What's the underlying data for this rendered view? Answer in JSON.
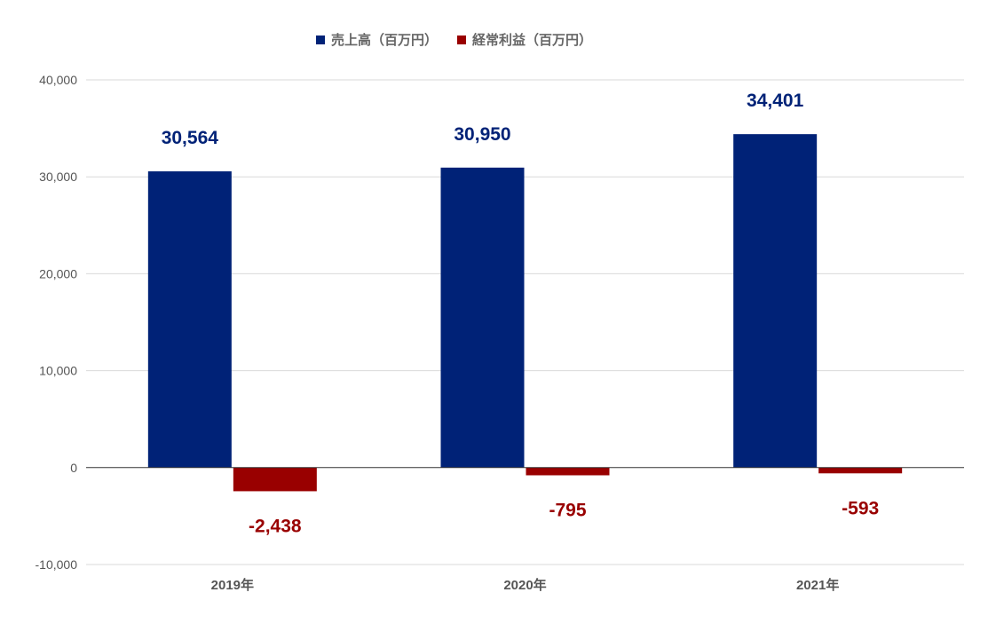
{
  "chart_data": {
    "type": "bar",
    "title": "",
    "xlabel": "",
    "ylabel": "",
    "categories": [
      "2019年",
      "2020年",
      "2021年"
    ],
    "series": [
      {
        "name": "売上高（百万円）",
        "color": "#002277",
        "values": [
          30564,
          30950,
          34401
        ],
        "labels": [
          "30,564",
          "30,950",
          "34,401"
        ]
      },
      {
        "name": "経常利益（百万円）",
        "color": "#990000",
        "values": [
          -2438,
          -795,
          -593
        ],
        "labels": [
          "-2,438",
          "-795",
          "-593"
        ]
      }
    ],
    "ylim": [
      -10000,
      40000
    ],
    "yticks": [
      40000,
      30000,
      20000,
      10000,
      0,
      -10000
    ],
    "ytick_labels": [
      "40,000",
      "30,000",
      "20,000",
      "10,000",
      "0",
      "-10,000"
    ],
    "grid": true,
    "legend_position": "top"
  }
}
